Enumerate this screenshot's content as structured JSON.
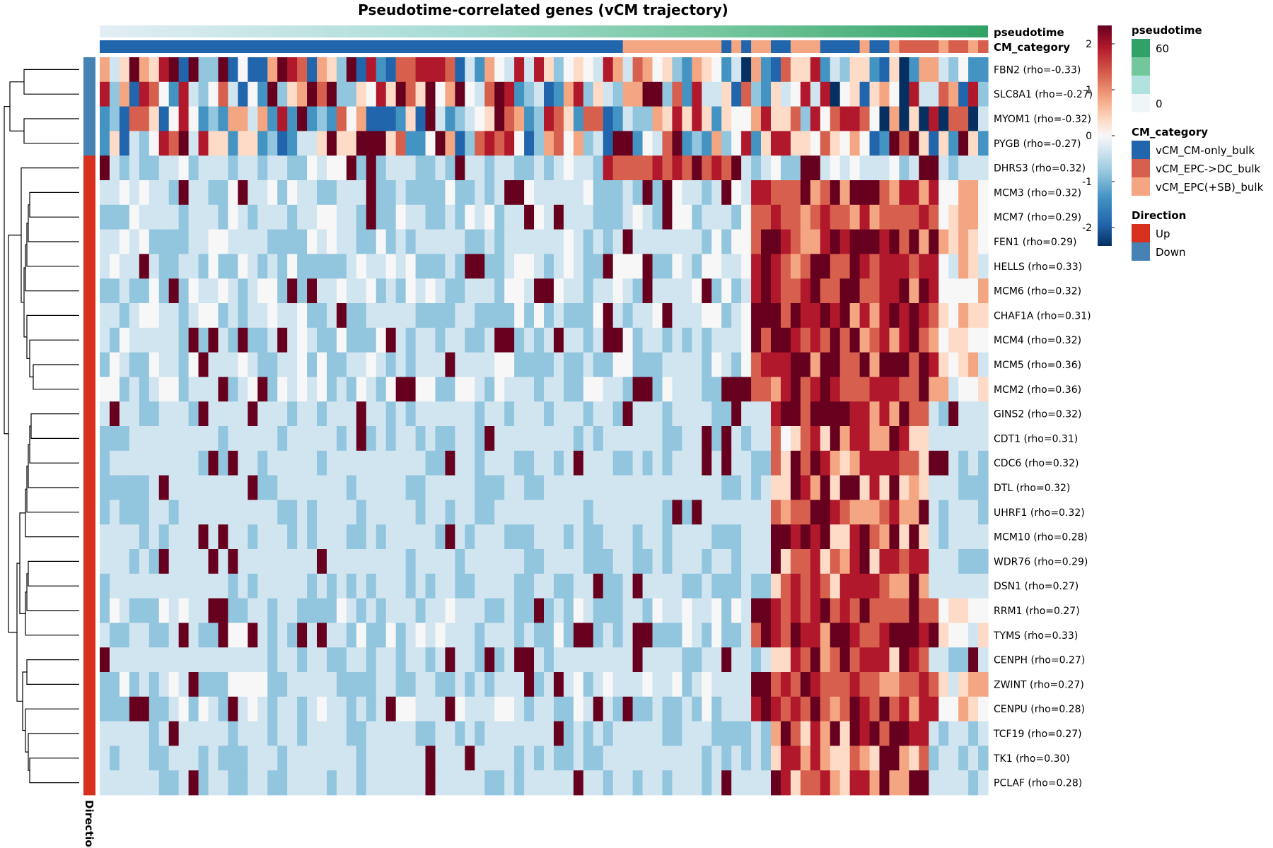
{
  "chart_data": {
    "type": "heatmap",
    "title": "Pseudotime-correlated genes (vCM trajectory)",
    "column_annotations": [
      {
        "name": "pseudotime",
        "label": "pseudotime"
      },
      {
        "name": "cm-category",
        "label": "CM_category"
      }
    ],
    "row_annotation": {
      "label": "Direction"
    },
    "rows": [
      {
        "gene": "FBN2 (rho=-0.33)",
        "direction": "Down",
        "pattern": "down"
      },
      {
        "gene": "SLC8A1 (rho=-0.27)",
        "direction": "Down",
        "pattern": "down"
      },
      {
        "gene": "MYOM1 (rho=-0.32)",
        "direction": "Down",
        "pattern": "down"
      },
      {
        "gene": "PYGB (rho=-0.27)",
        "direction": "Down",
        "pattern": "down"
      },
      {
        "gene": "DHRS3 (rho=0.32)",
        "direction": "Up",
        "pattern": "mid"
      },
      {
        "gene": "MCM3 (rho=0.32)",
        "direction": "Up",
        "pattern": "late"
      },
      {
        "gene": "MCM7 (rho=0.29)",
        "direction": "Up",
        "pattern": "late"
      },
      {
        "gene": "FEN1 (rho=0.29)",
        "direction": "Up",
        "pattern": "late"
      },
      {
        "gene": "HELLS (rho=0.33)",
        "direction": "Up",
        "pattern": "late"
      },
      {
        "gene": "MCM6 (rho=0.32)",
        "direction": "Up",
        "pattern": "late"
      },
      {
        "gene": "CHAF1A (rho=0.31)",
        "direction": "Up",
        "pattern": "late"
      },
      {
        "gene": "MCM4 (rho=0.32)",
        "direction": "Up",
        "pattern": "late"
      },
      {
        "gene": "MCM5 (rho=0.36)",
        "direction": "Up",
        "pattern": "late"
      },
      {
        "gene": "MCM2 (rho=0.36)",
        "direction": "Up",
        "pattern": "late"
      },
      {
        "gene": "GINS2 (rho=0.32)",
        "direction": "Up",
        "pattern": "sparse"
      },
      {
        "gene": "CDT1 (rho=0.31)",
        "direction": "Up",
        "pattern": "sparse"
      },
      {
        "gene": "CDC6 (rho=0.32)",
        "direction": "Up",
        "pattern": "sparse"
      },
      {
        "gene": "DTL (rho=0.32)",
        "direction": "Up",
        "pattern": "sparse"
      },
      {
        "gene": "UHRF1 (rho=0.32)",
        "direction": "Up",
        "pattern": "sparse"
      },
      {
        "gene": "MCM10 (rho=0.28)",
        "direction": "Up",
        "pattern": "sparse"
      },
      {
        "gene": "WDR76 (rho=0.29)",
        "direction": "Up",
        "pattern": "sparse"
      },
      {
        "gene": "DSN1 (rho=0.27)",
        "direction": "Up",
        "pattern": "sparse"
      },
      {
        "gene": "RRM1 (rho=0.27)",
        "direction": "Up",
        "pattern": "late"
      },
      {
        "gene": "TYMS (rho=0.33)",
        "direction": "Up",
        "pattern": "late"
      },
      {
        "gene": "CENPH (rho=0.27)",
        "direction": "Up",
        "pattern": "sparse"
      },
      {
        "gene": "ZWINT (rho=0.27)",
        "direction": "Up",
        "pattern": "late"
      },
      {
        "gene": "CENPU (rho=0.28)",
        "direction": "Up",
        "pattern": "late"
      },
      {
        "gene": "TCF19 (rho=0.27)",
        "direction": "Up",
        "pattern": "sparse"
      },
      {
        "gene": "TK1 (rho=0.30)",
        "direction": "Up",
        "pattern": "sparse"
      },
      {
        "gene": "PCLAF (rho=0.28)",
        "direction": "Up",
        "pattern": "sparse"
      }
    ],
    "color_scale": {
      "ticks": [
        2,
        1,
        0,
        -1,
        -2
      ],
      "tick_labels": [
        "2",
        "1",
        "0",
        "-1",
        "-2"
      ],
      "range": [
        -2.4,
        2.4
      ],
      "colors": [
        "#053061",
        "#2166ac",
        "#4393c3",
        "#92c5de",
        "#d1e5f0",
        "#f7f7f7",
        "#fddbc7",
        "#f4a582",
        "#d6604d",
        "#b2182b",
        "#67001f"
      ]
    },
    "legends": {
      "pseudotime": {
        "title": "pseudotime",
        "labels": [
          "60",
          "0"
        ],
        "colors": [
          "#31a267",
          "#74c69d",
          "#b2e2e0",
          "#eef6f8"
        ]
      },
      "cm_category": {
        "title": "CM_category",
        "items": [
          {
            "label": "vCM_CM-only_bulk",
            "color": "#2166ac"
          },
          {
            "label": "vCM_EPC->DC_bulk",
            "color": "#d6604d"
          },
          {
            "label": "vCM_EPC(+SB)_bulk",
            "color": "#f4a582"
          }
        ]
      },
      "direction": {
        "title": "Direction",
        "items": [
          {
            "label": "Up",
            "color": "#d7301f"
          },
          {
            "label": "Down",
            "color": "#4682b4"
          }
        ]
      }
    }
  }
}
